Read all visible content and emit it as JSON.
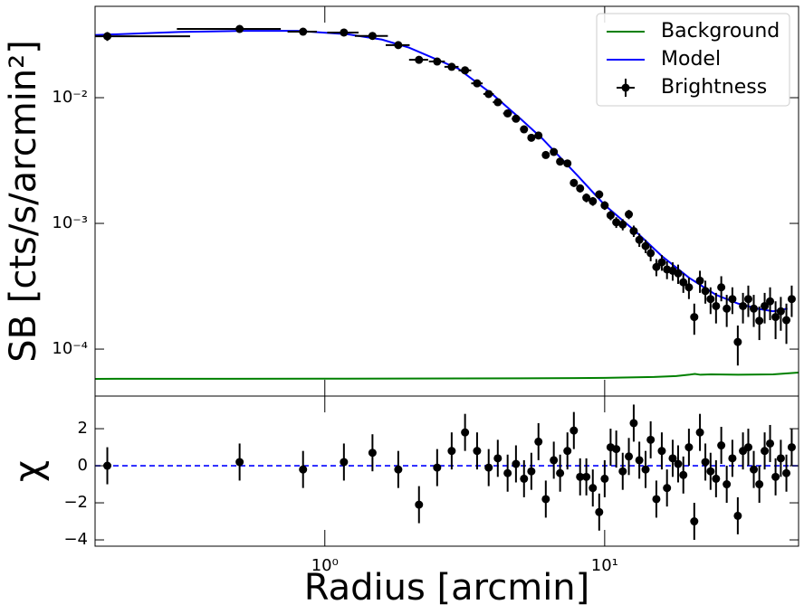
{
  "chart_data": [
    {
      "type": "errorbar",
      "ylabel": "SB [cts/s/arcmin²]",
      "log_x": true,
      "log_y": true,
      "xlim": [
        0.151,
        49.3
      ],
      "ylim": [
        4.23e-05,
        0.0533
      ],
      "xticks": [
        1,
        10
      ],
      "yticks": [
        {
          "value": 0.0001,
          "label": "10⁻⁴"
        },
        {
          "value": 0.001,
          "label": "10⁻³"
        },
        {
          "value": 0.01,
          "label": "10⁻²"
        }
      ],
      "legend": "upper right",
      "series": [
        {
          "name": "Background",
          "color": "#008000",
          "kind": "line",
          "x": [
            0.151,
            1,
            5,
            10,
            15,
            18,
            20,
            21,
            22,
            24,
            30,
            40,
            49.3
          ],
          "values": [
            5.8e-05,
            5.82e-05,
            5.85e-05,
            5.9e-05,
            6e-05,
            6.1e-05,
            6.25e-05,
            6.35e-05,
            6.25e-05,
            6.3e-05,
            6.25e-05,
            6.3e-05,
            6.5e-05
          ]
        },
        {
          "name": "Model",
          "color": "#0000ff",
          "kind": "line",
          "x": [
            0.151,
            0.3,
            0.5,
            0.8,
            1.2,
            1.6,
            2,
            3,
            4,
            5,
            6,
            8,
            10,
            13,
            16,
            20,
            25,
            30,
            35,
            40,
            45
          ],
          "values": [
            0.0315,
            0.0333,
            0.034,
            0.034,
            0.032,
            0.029,
            0.025,
            0.017,
            0.0105,
            0.0068,
            0.0047,
            0.0024,
            0.0014,
            0.00085,
            0.00055,
            0.00037,
            0.00027,
            0.00023,
            0.00021,
            0.0002,
            0.00021
          ]
        },
        {
          "name": "Brightness",
          "color": "#000000",
          "kind": "errorbar",
          "x": [
            0.167,
            0.496,
            0.836,
            1.17,
            1.48,
            1.83,
            2.17,
            2.52,
            2.84,
            3.17,
            3.5,
            3.85,
            4.15,
            4.5,
            4.82,
            5.15,
            5.47,
            5.8,
            6.16,
            6.58,
            6.93,
            7.36,
            7.76,
            8.17,
            8.6,
            9.07,
            9.56,
            10.0,
            10.5,
            11.0,
            11.6,
            12.2,
            12.7,
            13.3,
            14.0,
            14.6,
            15.3,
            16.0,
            16.7,
            17.5,
            18.3,
            19.1,
            20.0,
            20.9,
            21.9,
            22.9,
            23.9,
            25.0,
            26.1,
            27.3,
            28.6,
            29.9,
            31.2,
            32.6,
            34.1,
            35.7,
            37.3,
            39.0,
            40.8,
            42.6,
            44.6,
            46.6
          ],
          "values": [
            0.0308,
            0.0352,
            0.0335,
            0.033,
            0.031,
            0.0262,
            0.02,
            0.0194,
            0.0176,
            0.0165,
            0.013,
            0.0107,
            0.0092,
            0.0075,
            0.0068,
            0.0056,
            0.0048,
            0.005,
            0.0035,
            0.0037,
            0.0031,
            0.003,
            0.0021,
            0.0019,
            0.0016,
            0.0015,
            0.0017,
            0.00139,
            0.00116,
            0.00102,
            0.00098,
            0.00118,
            0.00087,
            0.00074,
            0.00066,
            0.00058,
            0.00045,
            0.00049,
            0.00043,
            0.00042,
            0.0004,
            0.00034,
            0.00031,
            0.00018,
            0.00035,
            0.00029,
            0.00025,
            0.00022,
            0.00031,
            0.00021,
            0.00025,
            0.000114,
            0.00022,
            0.00025,
            0.00021,
            0.000168,
            0.00022,
            0.00024,
            0.00018,
            0.0002,
            0.00017,
            0.00025
          ],
          "errors": [
            0.0025,
            0.002,
            0.0012,
            0.0011,
            0.001,
            0.0009,
            0.0007,
            0.0007,
            0.0006,
            0.0006,
            0.0005,
            0.0004,
            0.00035,
            0.0003,
            0.0003,
            0.00025,
            0.00022,
            0.00025,
            0.0002,
            0.0002,
            0.00018,
            0.00018,
            0.00015,
            0.00014,
            0.00013,
            0.00012,
            0.00013,
            0.00011,
            0.0001,
            0.0001,
            0.0001,
            0.0001,
            9e-05,
            9e-05,
            8e-05,
            8e-05,
            7e-05,
            7e-05,
            7e-05,
            7e-05,
            7e-05,
            6e-05,
            6e-05,
            5e-05,
            7e-05,
            6e-05,
            6e-05,
            6e-05,
            7e-05,
            6e-05,
            6e-05,
            4e-05,
            6e-05,
            7e-05,
            6e-05,
            5e-05,
            6e-05,
            7e-05,
            6e-05,
            6e-05,
            6e-05,
            7e-05
          ],
          "x_errors": [
            0.163,
            0.2,
            0.1,
            0.15,
            0.2,
            0.18,
            0.17,
            0.165,
            0.165,
            0.165,
            0.165,
            0.165,
            0.165,
            0.165,
            0.165,
            0.165,
            0.165,
            0.165,
            0.165,
            0.165,
            0.165,
            0.2,
            0.2,
            0.2,
            0.2,
            0.2,
            0.2,
            0.2,
            0.28,
            0.28,
            0.28,
            0.28,
            0.28,
            0.28,
            0.28,
            0.28,
            0.35,
            0.35,
            0.35,
            0.35,
            0.35,
            0.35,
            0.35,
            0.35,
            0.5,
            0.5,
            0.5,
            0.5,
            0.5,
            0.5,
            0.5,
            0.5,
            0.7,
            0.7,
            0.7,
            0.7,
            0.7,
            0.7,
            0.9,
            0.9,
            0.9,
            0.9
          ]
        }
      ]
    },
    {
      "type": "errorbar",
      "ylabel": "χ",
      "xlabel": "Radius [arcmin]",
      "log_x": true,
      "log_y": false,
      "xlim": [
        0.151,
        49.3
      ],
      "ylim": [
        -4.34,
        3.76
      ],
      "xticks": [
        {
          "value": 1,
          "label": "10⁰"
        },
        {
          "value": 10,
          "label": "10¹"
        }
      ],
      "yticks": [
        {
          "value": -4,
          "label": "−4"
        },
        {
          "value": -2,
          "label": "−2"
        },
        0,
        2
      ],
      "reference_line": {
        "value": 0,
        "color": "#0000ff"
      },
      "series": [
        {
          "color": "#000000",
          "kind": "errorbar",
          "x": [
            0.167,
            0.496,
            0.836,
            1.17,
            1.48,
            1.83,
            2.17,
            2.52,
            2.84,
            3.17,
            3.5,
            3.85,
            4.15,
            4.5,
            4.82,
            5.15,
            5.47,
            5.8,
            6.16,
            6.58,
            6.93,
            7.36,
            7.76,
            8.17,
            8.6,
            9.07,
            9.56,
            10.0,
            10.5,
            11.0,
            11.6,
            12.2,
            12.7,
            13.3,
            14.0,
            14.6,
            15.3,
            16.0,
            16.7,
            17.5,
            18.3,
            19.1,
            20.0,
            20.9,
            21.9,
            22.9,
            23.9,
            25.0,
            26.1,
            27.3,
            28.6,
            29.9,
            31.2,
            32.6,
            34.1,
            35.7,
            37.3,
            39.0,
            40.8,
            42.6,
            44.6,
            46.6
          ],
          "values": [
            0,
            0.2,
            -0.2,
            0.2,
            0.7,
            -0.2,
            -2.1,
            -0.1,
            0.8,
            1.8,
            0.8,
            -0.1,
            0.4,
            -0.4,
            0.1,
            -0.7,
            -0.3,
            1.3,
            -1.8,
            0.3,
            -0.4,
            0.8,
            1.9,
            -0.6,
            -0.6,
            -1.2,
            -2.5,
            -0.7,
            1.0,
            0.9,
            -0.3,
            0.5,
            2.3,
            0.3,
            -0.2,
            1.4,
            -1.8,
            0.8,
            -1.2,
            0.4,
            0.1,
            -0.5,
            1.0,
            -3.0,
            1.8,
            0.2,
            -0.3,
            -0.7,
            1.1,
            -1.0,
            0.4,
            -2.7,
            0.8,
            1.0,
            -0.2,
            -1.0,
            0.8,
            1.2,
            -0.6,
            0.4,
            -0.4,
            1.0
          ],
          "errors": [
            1,
            1,
            1,
            1,
            1,
            1,
            1,
            1,
            1,
            1,
            1,
            1,
            1,
            1,
            1,
            1,
            1,
            1,
            1,
            1,
            1,
            1,
            1,
            1,
            1,
            1,
            1,
            1,
            1,
            1,
            1,
            1,
            1,
            1,
            1,
            1,
            1,
            1,
            1,
            1,
            1,
            1,
            1,
            1,
            1,
            1,
            1,
            1,
            1,
            1,
            1,
            1,
            1,
            1,
            1,
            1,
            1,
            1,
            1,
            1,
            1,
            1
          ]
        }
      ]
    }
  ]
}
